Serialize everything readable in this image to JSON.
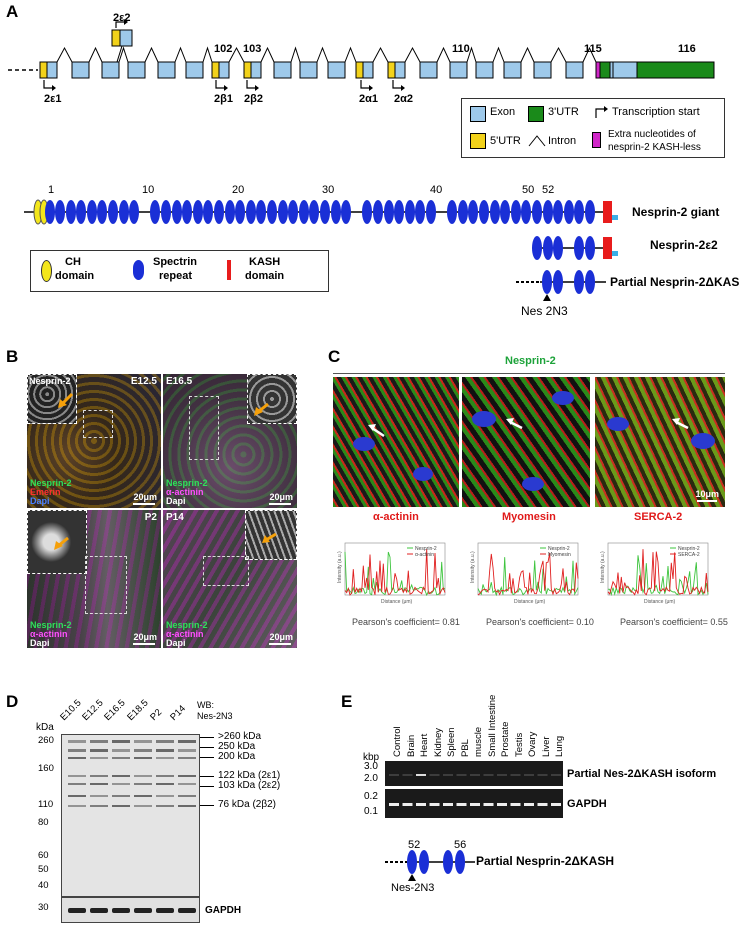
{
  "panel_labels": {
    "a": "A",
    "b": "B",
    "c": "C",
    "d": "D",
    "e": "E"
  },
  "panel_a": {
    "promoter_labels": {
      "e1": "2ε1",
      "e2": "2ε2",
      "b1": "2β1",
      "b2": "2β2",
      "a1": "2α1",
      "a2": "2α2"
    },
    "exon_numbers": {
      "n102": "102",
      "n103": "103",
      "n110": "110",
      "n115": "115",
      "n116": "116"
    },
    "legend": {
      "exon": "Exon",
      "utr3": "3'UTR",
      "tss": "Transcription start",
      "utr5": "5'UTR",
      "intron": "Intron",
      "extra_line1": "Extra nucleotides of",
      "extra_line2": "nesprin-2 KASH-less"
    },
    "domain_numbers": {
      "d1": "1",
      "d10": "10",
      "d20": "20",
      "d30": "30",
      "d40": "40",
      "d50": "50",
      "d52": "52"
    },
    "isoforms": {
      "giant": "Nesprin-2 giant",
      "e2": "Nesprin-2ε2",
      "partial": "Partial Nesprin-2ΔKASH"
    },
    "domain_legend": {
      "ch_line1": "CH",
      "ch_line2": "domain",
      "sr_line1": "Spectrin",
      "sr_line2": "repeat",
      "kash_line1": "KASH",
      "kash_line2": "domain"
    },
    "antibody_label": "Nes 2N3",
    "colors": {
      "exon": "#9ec9ea",
      "utr5": "#f2d21a",
      "utr3": "#1a8a1a",
      "extra": "#d026c8",
      "spectrin": "#1a2fd6",
      "ch": "#f3e61c",
      "kash": "#e81c1c",
      "tail": "#3aaee6"
    }
  },
  "panel_b": {
    "tiles": [
      {
        "stage": "E12.5",
        "inset_label": "Nesprin-2",
        "stain1": "Nesprin-2",
        "stain2": "Emerin",
        "stain3": "Dapi",
        "scale": "20μm"
      },
      {
        "stage": "E16.5",
        "stain1": "Nesprin-2",
        "stain2": "α-actinin",
        "stain3": "Dapi",
        "scale": "20μm"
      },
      {
        "stage": "P2",
        "stain1": "Nesprin-2",
        "stain2": "α-actinin",
        "stain3": "Dapi",
        "scale": "20μm"
      },
      {
        "stage": "P14",
        "stain1": "Nesprin-2",
        "stain2": "α-actinin",
        "stain3": "Dapi",
        "scale": "20μm"
      }
    ]
  },
  "panel_c": {
    "header": "Nesprin-2",
    "scale": "10μm",
    "columns": [
      {
        "label": "α-actinin",
        "pearson": "Pearson's coefficient= 0.81",
        "legend1": "Nesprin-2",
        "legend2": "α-actinin",
        "xlabel": "Distance (μm)",
        "ylabel": "Intensity (a.u.)"
      },
      {
        "label": "Myomesin",
        "pearson": "Pearson's coefficient= 0.10",
        "legend1": "Nesprin-2",
        "legend2": "Myomesin",
        "xlabel": "Distance (μm)",
        "ylabel": "Intensity (a.u.)"
      },
      {
        "label": "SERCA-2",
        "pearson": "Pearson's coefficient= 0.55",
        "legend1": "Nesprin-2",
        "legend2": "SERCA-2",
        "xlabel": "Distance (μm)",
        "ylabel": "Intensity (a.u.)"
      }
    ]
  },
  "panel_d": {
    "lanes": [
      "E10.5",
      "E12.5",
      "E16.5",
      "E18.5",
      "P2",
      "P14"
    ],
    "wb_line1": "WB:",
    "wb_line2": "Nes-2N3",
    "kda": "kDa",
    "markers": [
      "260",
      "160",
      "110",
      "80",
      "60",
      "50",
      "40",
      "30"
    ],
    "marker_lower": "40",
    "bands": [
      ">260 kDa",
      "250 kDa",
      "200 kDa",
      "122 kDa (2ε1)",
      "103 kDa (2ε2)",
      "76 kDa (2β2)"
    ],
    "gapdh": "GAPDH"
  },
  "panel_e": {
    "lanes": [
      "Control",
      "Brain",
      "Heart",
      "Kidney",
      "Spleen",
      "PBL",
      "muscle",
      "Small Intestine",
      "Prostate",
      "Testis",
      "Ovary",
      "Liver",
      "Lung"
    ],
    "kbp": "kbp",
    "markers_top": [
      "3.0",
      "2.0"
    ],
    "markers_bottom": [
      "0.2",
      "0.1"
    ],
    "gel_labels": [
      "Partial Nes-2ΔKASH isoform",
      "GAPDH"
    ],
    "schematic_numbers": [
      "52",
      "56"
    ],
    "schematic_label": "Partial Nesprin-2ΔKASH",
    "antibody": "Nes-2N3"
  }
}
